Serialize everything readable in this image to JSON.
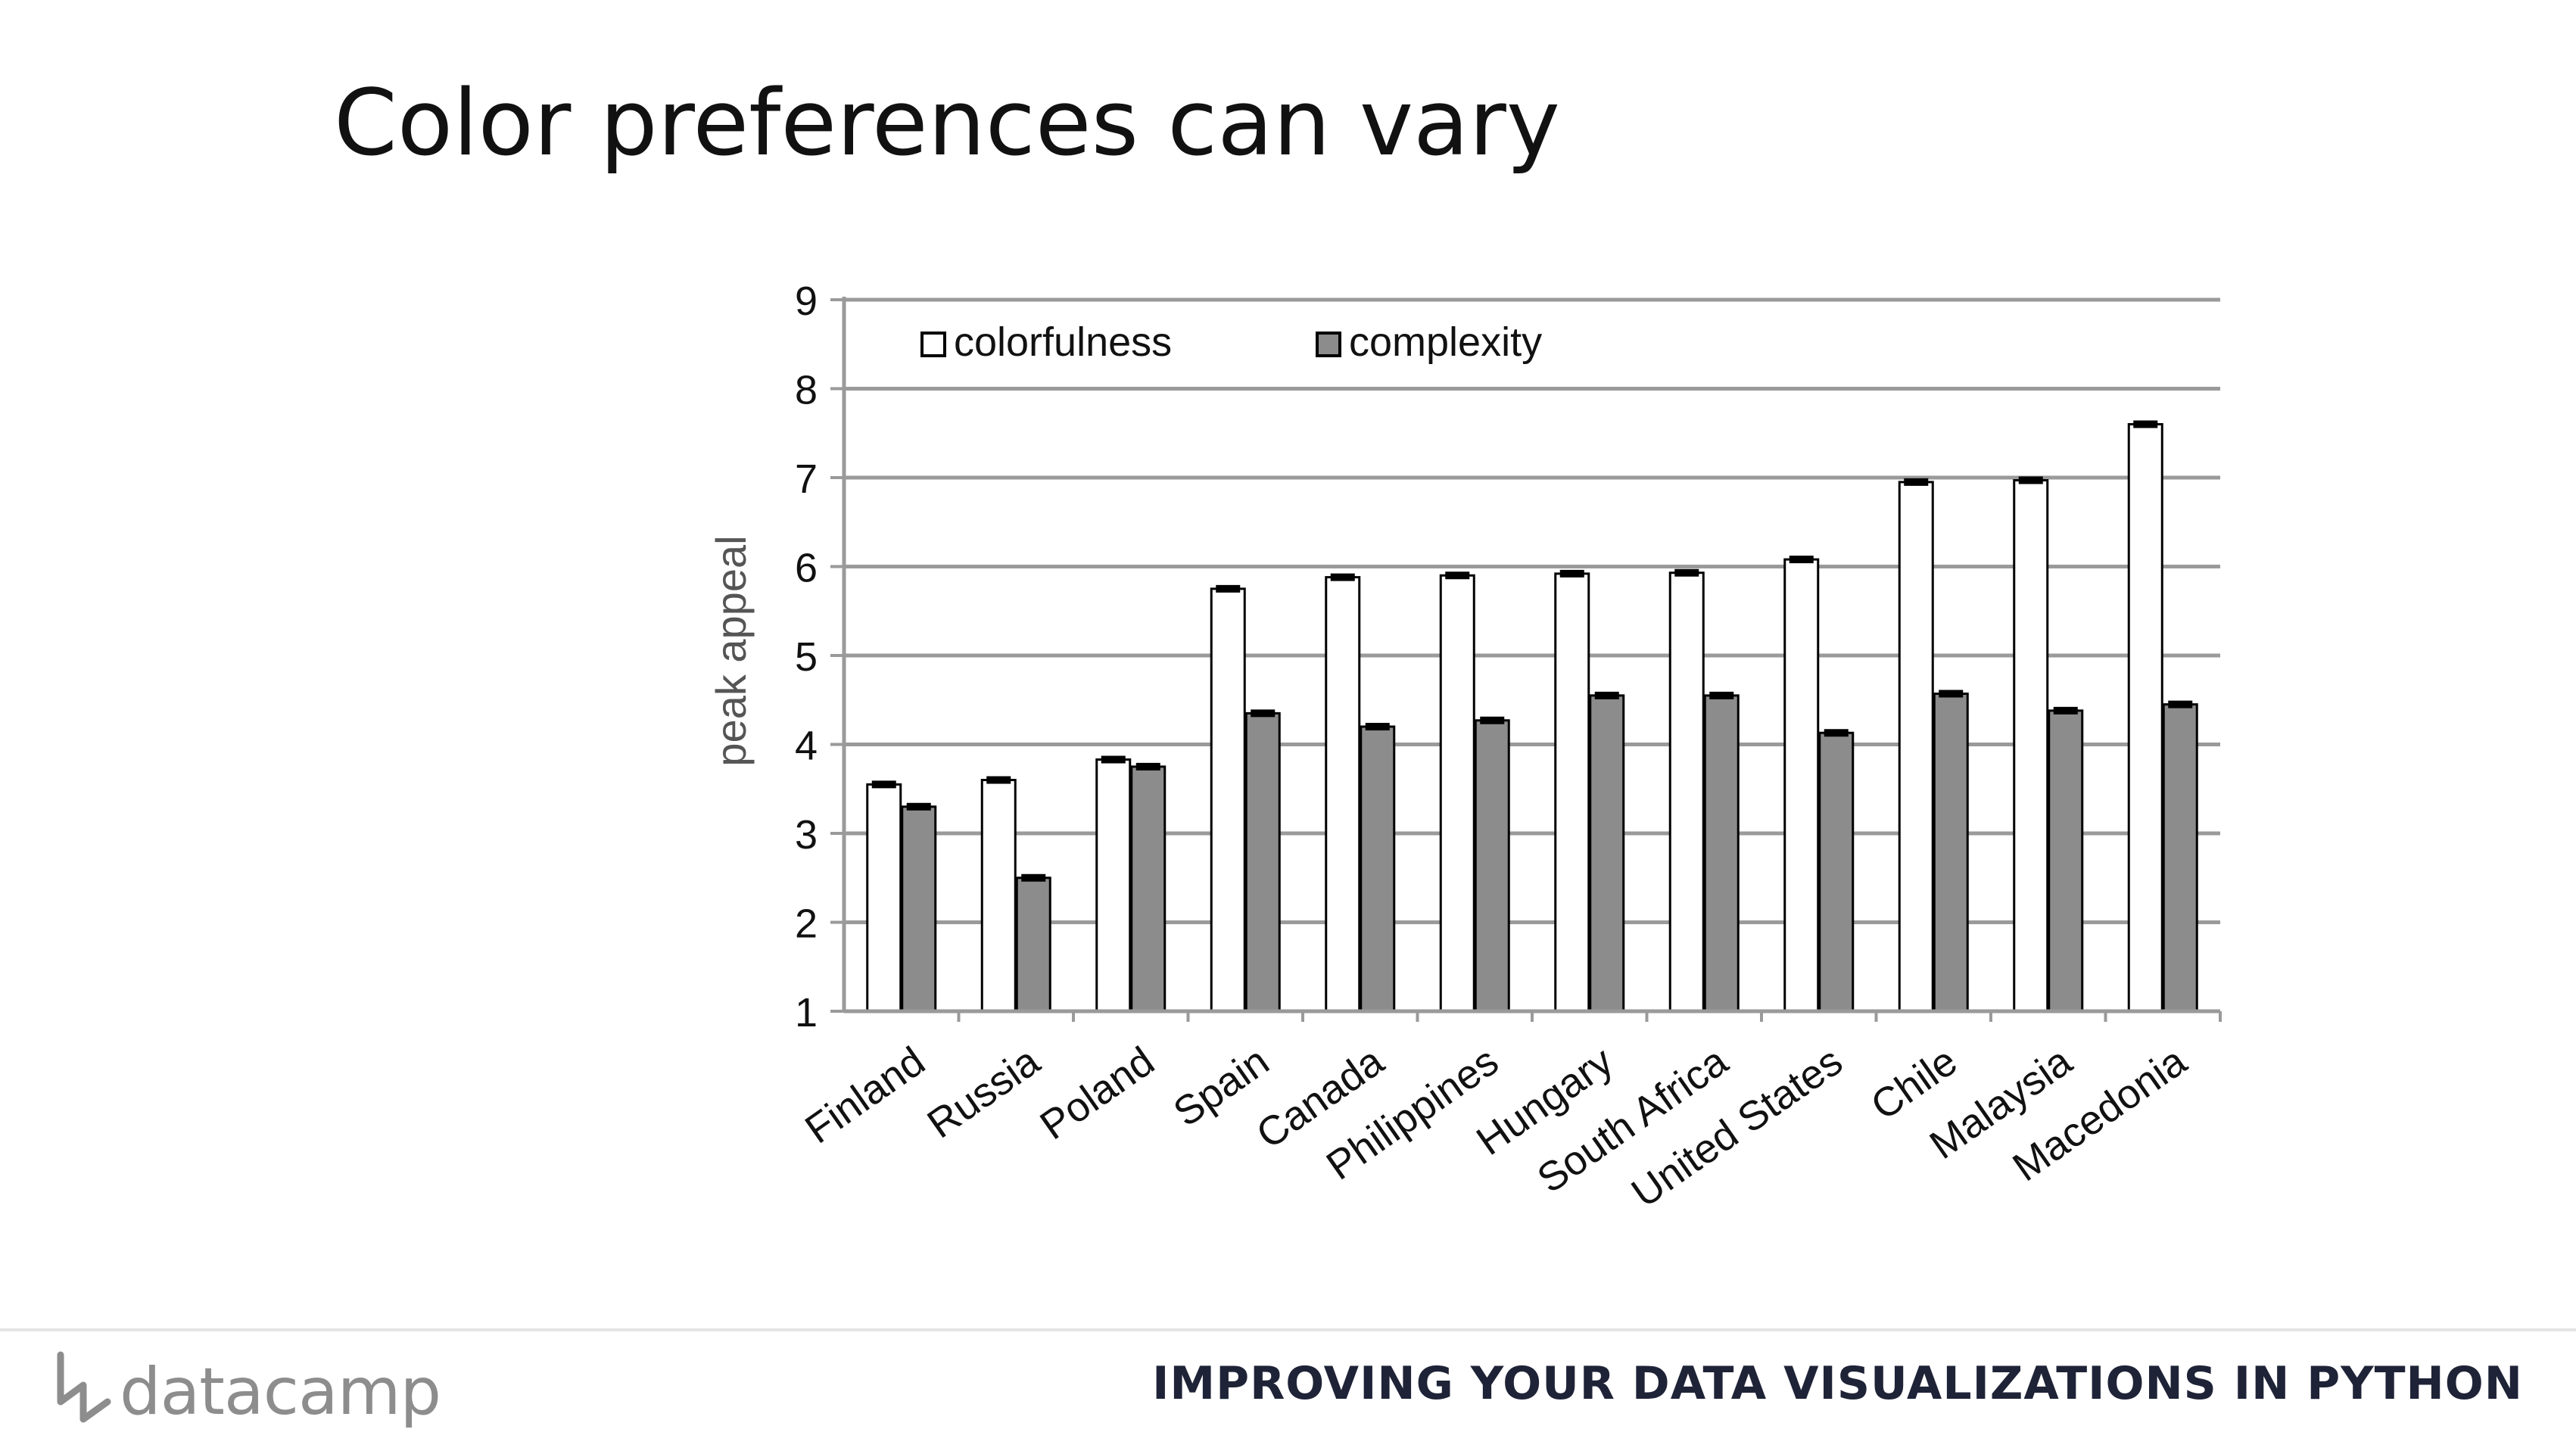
{
  "slide": {
    "title": "Color preferences can vary"
  },
  "chart_data": {
    "type": "bar",
    "ylabel": "peak appeal",
    "xlabel": "",
    "ylim": [
      1,
      9
    ],
    "yticks": [
      "1",
      "2",
      "3",
      "4",
      "5",
      "6",
      "7",
      "8",
      "9"
    ],
    "grid": true,
    "legend_position": "top-left",
    "categories": [
      "Finland",
      "Russia",
      "Poland",
      "Spain",
      "Canada",
      "Philippines",
      "Hungary",
      "South Africa",
      "United States",
      "Chile",
      "Malaysia",
      "Macedonia"
    ],
    "series": [
      {
        "name": "colorfulness",
        "color": "#ffffff",
        "values": [
          3.55,
          3.6,
          3.83,
          5.75,
          5.88,
          5.9,
          5.92,
          5.93,
          6.08,
          6.95,
          6.97,
          7.6
        ]
      },
      {
        "name": "complexity",
        "color": "#8c8c8c",
        "values": [
          3.3,
          2.5,
          3.75,
          4.35,
          4.2,
          4.27,
          4.55,
          4.55,
          4.13,
          4.57,
          4.38,
          4.45
        ]
      }
    ]
  },
  "footer": {
    "brand": "datacamp",
    "course_title": "IMPROVING YOUR DATA VISUALIZATIONS IN PYTHON"
  }
}
